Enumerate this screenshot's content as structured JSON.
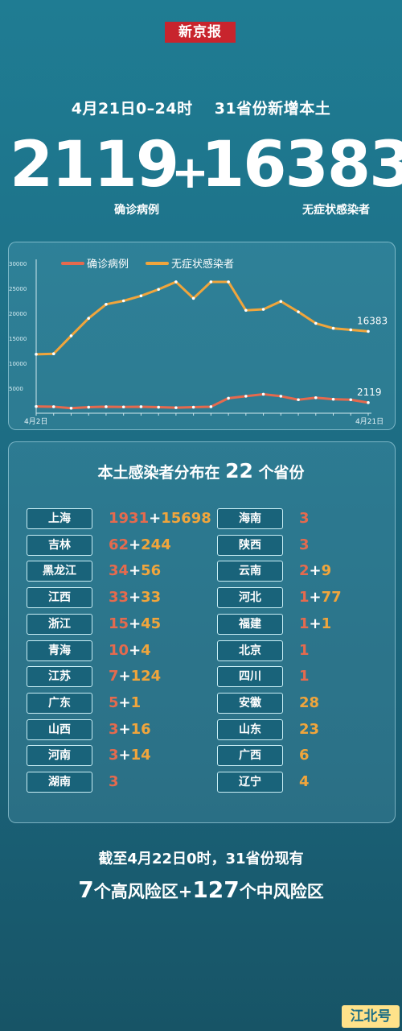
{
  "logo": "新京报",
  "header": {
    "date_range": "4月21日0–24时",
    "headline": "31省份新增本土"
  },
  "totals": {
    "confirmed": "2119",
    "plus": "+",
    "asymptomatic": "16383",
    "confirmed_label": "确诊病例",
    "asymptomatic_label": "无症状感染者"
  },
  "colors": {
    "confirmed": "#e56a4e",
    "asymptomatic": "#f0a53c",
    "logo_red": "#c8242d"
  },
  "chart_data": {
    "type": "line",
    "x_start_label": "4月2日",
    "x_end_label": "4月21日",
    "ylim": [
      0,
      30000
    ],
    "yticks": [
      "30000",
      "25000",
      "20000",
      "15000",
      "10000",
      "5000"
    ],
    "legend": [
      "确诊病例",
      "无症状感染者"
    ],
    "legend_position": "top",
    "series": [
      {
        "name": "确诊病例",
        "values": [
          1350,
          1300,
          1000,
          1200,
          1300,
          1250,
          1300,
          1200,
          1100,
          1200,
          1300,
          3000,
          3400,
          3800,
          3400,
          2700,
          3100,
          2800,
          2700,
          2119
        ],
        "end_label": "2119"
      },
      {
        "name": "无症状感染者",
        "values": [
          11800,
          11900,
          15500,
          19000,
          21800,
          22500,
          23500,
          24800,
          26300,
          23000,
          26300,
          26300,
          20600,
          20800,
          22400,
          20300,
          18000,
          17000,
          16700,
          16383
        ],
        "end_label": "16383"
      }
    ]
  },
  "distribution": {
    "title_prefix": "本土感染者分布在",
    "count": "22",
    "title_suffix": "个省份",
    "left": [
      {
        "name": "上海",
        "confirmed": "1931",
        "asymptomatic": "15698"
      },
      {
        "name": "吉林",
        "confirmed": "62",
        "asymptomatic": "244"
      },
      {
        "name": "黑龙江",
        "confirmed": "34",
        "asymptomatic": "56"
      },
      {
        "name": "江西",
        "confirmed": "33",
        "asymptomatic": "33"
      },
      {
        "name": "浙江",
        "confirmed": "15",
        "asymptomatic": "45"
      },
      {
        "name": "青海",
        "confirmed": "10",
        "asymptomatic": "4"
      },
      {
        "name": "江苏",
        "confirmed": "7",
        "asymptomatic": "124"
      },
      {
        "name": "广东",
        "confirmed": "5",
        "asymptomatic": "1"
      },
      {
        "name": "山西",
        "confirmed": "3",
        "asymptomatic": "16"
      },
      {
        "name": "河南",
        "confirmed": "3",
        "asymptomatic": "14"
      },
      {
        "name": "湖南",
        "confirmed": "3",
        "asymptomatic": ""
      }
    ],
    "right": [
      {
        "name": "海南",
        "confirmed": "3",
        "asymptomatic": ""
      },
      {
        "name": "陕西",
        "confirmed": "3",
        "asymptomatic": ""
      },
      {
        "name": "云南",
        "confirmed": "2",
        "asymptomatic": "9"
      },
      {
        "name": "河北",
        "confirmed": "1",
        "asymptomatic": "77"
      },
      {
        "name": "福建",
        "confirmed": "1",
        "asymptomatic": "1"
      },
      {
        "name": "北京",
        "confirmed": "1",
        "asymptomatic": ""
      },
      {
        "name": "四川",
        "confirmed": "1",
        "asymptomatic": ""
      },
      {
        "name": "安徽",
        "confirmed": "",
        "asymptomatic": "28"
      },
      {
        "name": "山东",
        "confirmed": "",
        "asymptomatic": "23"
      },
      {
        "name": "广西",
        "confirmed": "",
        "asymptomatic": "6"
      },
      {
        "name": "辽宁",
        "confirmed": "",
        "asymptomatic": "4"
      }
    ]
  },
  "footer": {
    "line1": "截至4月22日0时，31省份现有",
    "high_count": "7",
    "high_text": "个高风险区+",
    "mid_count": "127",
    "mid_text": "个中风险区"
  },
  "watermark": "江北号"
}
